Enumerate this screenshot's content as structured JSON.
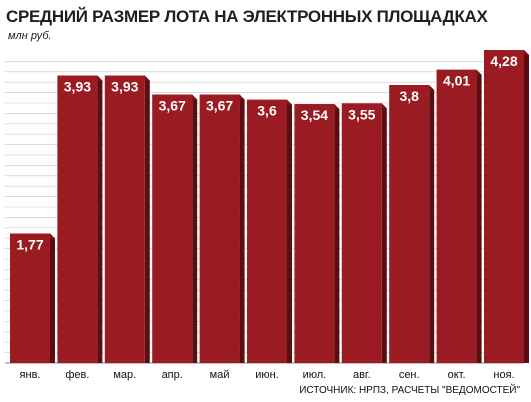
{
  "chart_data": {
    "type": "bar",
    "title": "СРЕДНИЙ РАЗМЕР ЛОТА НА ЭЛЕКТРОННЫХ ПЛОЩАДКАХ",
    "unit": "млн руб.",
    "categories": [
      "янв.",
      "фев.",
      "мар.",
      "апр.",
      "май",
      "июн.",
      "июл.",
      "авг.",
      "сен.",
      "окт.",
      "ноя."
    ],
    "values": [
      1.77,
      3.93,
      3.93,
      3.67,
      3.67,
      3.6,
      3.54,
      3.55,
      3.8,
      4.01,
      4.28
    ],
    "value_labels": [
      "1,77",
      "3,93",
      "3,93",
      "3,67",
      "3,67",
      "3,6",
      "3,54",
      "3,55",
      "3,8",
      "4,01",
      "4,28"
    ],
    "source": "ИСТОЧНИК: НРПЗ, РАСЧЕТЫ \"ВЕДОМОСТЕЙ\"",
    "ylim": [
      0,
      4.28
    ],
    "grid": true,
    "colors": {
      "bar_front": "#9b1b22",
      "bar_side": "#5c0d12",
      "bar_top": "#7a1419",
      "grid": "#c8c8c8"
    }
  }
}
